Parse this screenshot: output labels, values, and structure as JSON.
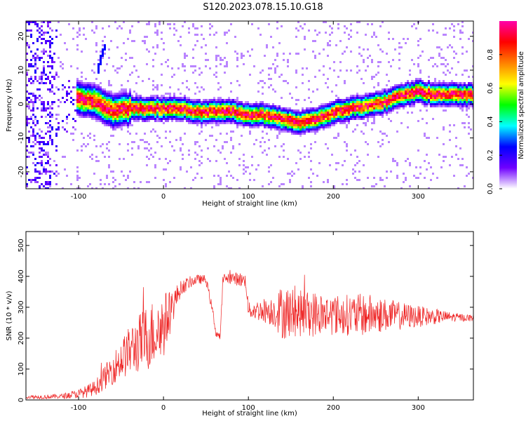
{
  "title": "S120.2023.078.15.10.G18",
  "chart_data": [
    {
      "type": "heatmap",
      "xlabel": "Height of straight line (km)",
      "ylabel": "Frequency (Hz)",
      "xlim": [
        -162,
        365
      ],
      "ylim": [
        -25,
        24.5
      ],
      "xticks": [
        -100,
        0,
        100,
        200,
        300
      ],
      "yticks": [
        -20,
        -10,
        0,
        10,
        20
      ],
      "colorbar": {
        "label": "Normalized spectral amplitude",
        "range": [
          0,
          1
        ],
        "ticks": [
          0.0,
          0.2,
          0.4,
          0.6,
          0.8
        ],
        "tick_labels": [
          "0.0",
          "0.2",
          "0.4",
          "0.6",
          "0.8"
        ],
        "colors": [
          "#ffffff",
          "#6f00ff",
          "#0000ff",
          "#00ffff",
          "#00ff00",
          "#ffff00",
          "#ff8000",
          "#ff0000",
          "#ff00aa"
        ]
      },
      "ridge": {
        "x": [
          -100,
          -80,
          -60,
          -40,
          -20,
          0,
          20,
          40,
          60,
          80,
          100,
          120,
          140,
          160,
          180,
          200,
          220,
          240,
          260,
          280,
          300,
          320,
          340,
          360
        ],
        "y": [
          2,
          1,
          -2,
          -1,
          -1,
          -1,
          -1,
          -2,
          -2,
          -2,
          -3,
          -3,
          -4,
          -5,
          -4,
          -2,
          -1,
          0,
          1,
          3,
          4,
          3,
          3,
          3
        ]
      }
    },
    {
      "type": "line",
      "xlabel": "Height of straight line (km)",
      "ylabel": "SNR (10 * v/v)",
      "xlim": [
        -162,
        365
      ],
      "ylim": [
        0,
        545
      ],
      "xticks": [
        -100,
        0,
        100,
        200,
        300
      ],
      "yticks": [
        0,
        100,
        200,
        300,
        400,
        500
      ],
      "color": "#ee2222",
      "envelope": {
        "x": [
          -162,
          -140,
          -120,
          -100,
          -90,
          -80,
          -70,
          -60,
          -50,
          -40,
          -30,
          -20,
          -10,
          0,
          10,
          20,
          30,
          40,
          50,
          57,
          62,
          67,
          70,
          75,
          80,
          90,
          97,
          100,
          120,
          140,
          160,
          180,
          200,
          220,
          240,
          260,
          280,
          300,
          320,
          340,
          365
        ],
        "y": [
          10,
          10,
          12,
          20,
          28,
          40,
          70,
          100,
          130,
          160,
          180,
          200,
          220,
          240,
          300,
          360,
          380,
          390,
          390,
          300,
          215,
          205,
          390,
          395,
          395,
          390,
          385,
          290,
          290,
          285,
          280,
          278,
          276,
          275,
          275,
          275,
          272,
          270,
          270,
          268,
          265
        ]
      },
      "noise_amp": {
        "x": [
          -162,
          -120,
          -100,
          -80,
          -60,
          -40,
          -20,
          0,
          10,
          20,
          40,
          60,
          100,
          130,
          140,
          160,
          180,
          200,
          240,
          260,
          300,
          340,
          365
        ],
        "y": [
          6,
          8,
          15,
          25,
          50,
          80,
          110,
          110,
          60,
          25,
          15,
          15,
          25,
          50,
          90,
          75,
          75,
          65,
          70,
          55,
          35,
          15,
          10
        ]
      }
    }
  ]
}
